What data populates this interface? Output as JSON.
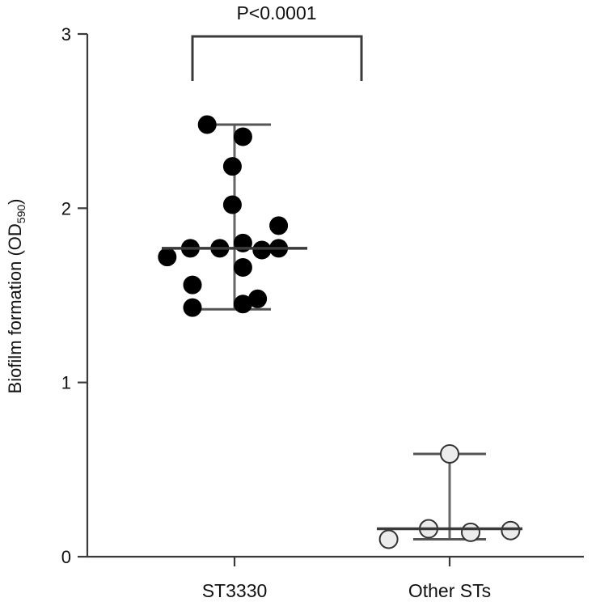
{
  "chart_data": {
    "type": "scatter",
    "ylabel": "Biofilm formation (OD",
    "ylabel_sub": "590",
    "ylabel_close": ")",
    "ylim": [
      0,
      3
    ],
    "yticks": [
      "0",
      "1",
      "2",
      "3"
    ],
    "categories": [
      "ST3330",
      "Other STs"
    ],
    "significance": "P<0.0001",
    "grid": false,
    "groups": [
      {
        "category": "ST3330",
        "marker_fill": "#000000",
        "median": 1.77,
        "range": [
          1.42,
          2.48
        ],
        "points": [
          {
            "offset": -0.13,
            "y": 2.48
          },
          {
            "offset": 0.04,
            "y": 2.41
          },
          {
            "offset": -0.01,
            "y": 2.24
          },
          {
            "offset": -0.01,
            "y": 2.02
          },
          {
            "offset": 0.21,
            "y": 1.9
          },
          {
            "offset": 0.04,
            "y": 1.8
          },
          {
            "offset": -0.21,
            "y": 1.77
          },
          {
            "offset": -0.07,
            "y": 1.77
          },
          {
            "offset": 0.13,
            "y": 1.76
          },
          {
            "offset": 0.21,
            "y": 1.77
          },
          {
            "offset": -0.32,
            "y": 1.72
          },
          {
            "offset": 0.04,
            "y": 1.66
          },
          {
            "offset": -0.2,
            "y": 1.56
          },
          {
            "offset": 0.11,
            "y": 1.48
          },
          {
            "offset": 0.04,
            "y": 1.45
          },
          {
            "offset": -0.2,
            "y": 1.43
          }
        ]
      },
      {
        "category": "Other STs",
        "marker_fill": "#ececec",
        "median": 0.16,
        "range": [
          0.1,
          0.59
        ],
        "points": [
          {
            "offset": 0.0,
            "y": 0.59
          },
          {
            "offset": -0.1,
            "y": 0.16
          },
          {
            "offset": 0.1,
            "y": 0.14
          },
          {
            "offset": 0.29,
            "y": 0.15
          },
          {
            "offset": -0.29,
            "y": 0.1
          }
        ]
      }
    ]
  }
}
